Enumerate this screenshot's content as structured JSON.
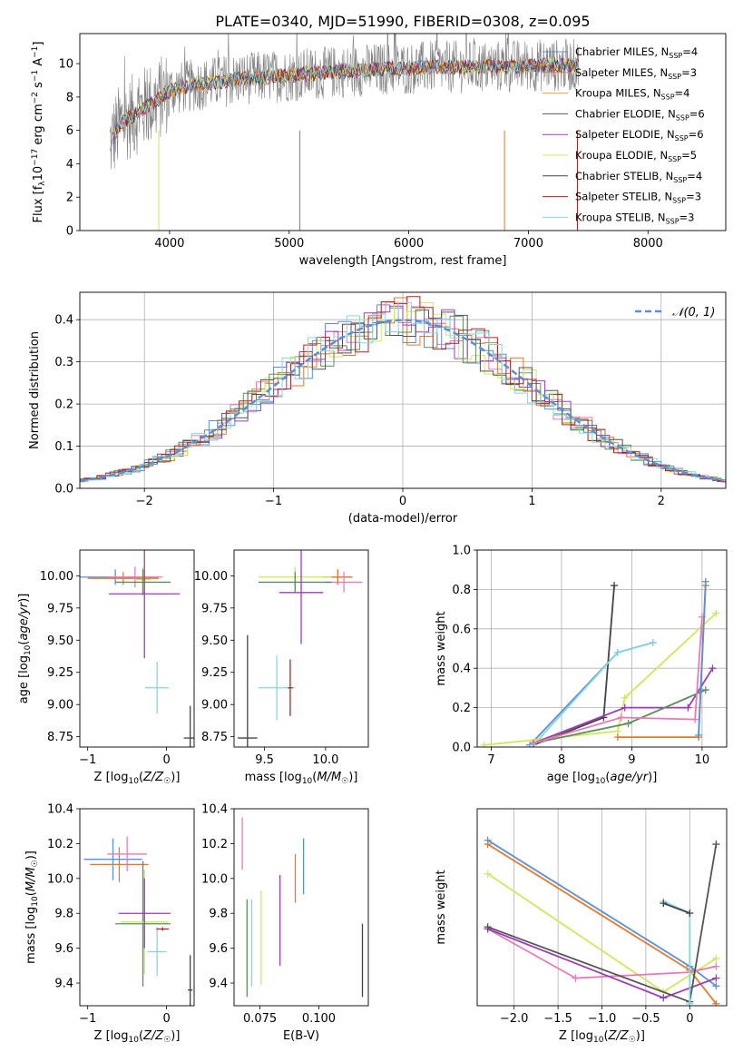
{
  "figure_title": "PLATE=0340, MJD=51990, FIBERID=0308, z=0.095",
  "colors": {
    "chabrier_miles": "#5b8fd6",
    "salpeter_miles": "#e07b2e",
    "kroupa_miles": "#e8a040",
    "chabrier_elodie": "#555555",
    "salpeter_elodie": "#9b3db8",
    "kroupa_elodie": "#cfe85a",
    "chabrier_stelib": "#444444",
    "salpeter_stelib": "#b02525",
    "kroupa_stelib": "#86d6e2",
    "pink": "#e87bb4",
    "green": "#5a8f5a",
    "spectrum_gray": "#7f7f7f"
  },
  "chart_data": [
    {
      "id": "spectrum",
      "type": "line",
      "xlabel": "wavelength [Angstrom, rest frame]",
      "ylabel": "Flux [f_λ 10^-17 erg cm^-2 s^-1 A^-1]",
      "xlim": [
        3250,
        8650
      ],
      "ylim": [
        0,
        11.8
      ],
      "xticks": [
        4000,
        5000,
        6000,
        7000,
        8000
      ],
      "yticks": [
        0,
        2,
        4,
        6,
        8,
        10
      ],
      "legend_position": "upper-right",
      "legend": [
        {
          "label": "Chabrier MILES, N_SSP=4",
          "color": "#5b8fd6"
        },
        {
          "label": "Salpeter MILES, N_SSP=3",
          "color": "#e07b2e"
        },
        {
          "label": "Kroupa MILES, N_SSP=4",
          "color": "#e8a040"
        },
        {
          "label": "Chabrier ELODIE, N_SSP=6",
          "color": "#555555"
        },
        {
          "label": "Salpeter ELODIE, N_SSP=6",
          "color": "#9b3db8"
        },
        {
          "label": "Kroupa ELODIE, N_SSP=5",
          "color": "#cfe85a"
        },
        {
          "label": "Chabrier STELIB, N_SSP=4",
          "color": "#444444"
        },
        {
          "label": "Salpeter STELIB, N_SSP=3",
          "color": "#b02525"
        },
        {
          "label": "Kroupa STELIB, N_SSP=3",
          "color": "#86d6e2"
        }
      ],
      "continuum": [
        [
          3500,
          5.2
        ],
        [
          3600,
          6.5
        ],
        [
          3700,
          6.9
        ],
        [
          3800,
          7.4
        ],
        [
          3900,
          7.8
        ],
        [
          4000,
          8.4
        ],
        [
          4200,
          8.7
        ],
        [
          4400,
          8.9
        ],
        [
          4600,
          9.1
        ],
        [
          4800,
          9.2
        ],
        [
          5000,
          9.3
        ],
        [
          5200,
          9.4
        ],
        [
          5400,
          9.5
        ],
        [
          5600,
          9.6
        ],
        [
          5800,
          9.7
        ],
        [
          6000,
          9.7
        ],
        [
          6200,
          9.8
        ],
        [
          6400,
          9.8
        ],
        [
          6600,
          9.8
        ],
        [
          6800,
          9.8
        ],
        [
          7000,
          9.9
        ],
        [
          7200,
          9.9
        ],
        [
          7400,
          9.9
        ]
      ]
    },
    {
      "id": "residuals",
      "type": "histogram",
      "xlabel": "(data-model)/error",
      "ylabel": "Normed distribution",
      "xlim": [
        -2.5,
        2.5
      ],
      "ylim": [
        0,
        0.465
      ],
      "xticks": [
        -2,
        -1,
        0,
        1,
        2
      ],
      "yticks": [
        0.0,
        0.1,
        0.2,
        0.3,
        0.4
      ],
      "grid": true,
      "legend_label": "𝒩(0, 1)",
      "legend_position": "upper-right"
    },
    {
      "id": "age_vs_Z",
      "type": "errorbar",
      "xlabel": "Z [log10(Z/Z☉)]",
      "ylabel": "age  [log10(age/yr)]",
      "xlim": [
        -1.1,
        0.35
      ],
      "ylim": [
        8.67,
        10.2
      ],
      "xticks": [
        -1,
        0
      ],
      "yticks": [
        8.75,
        9.0,
        9.25,
        9.5,
        9.75,
        10.0
      ],
      "points": [
        {
          "x": -0.65,
          "y": 9.99,
          "xerr": 0.55,
          "yerr": 0.06,
          "color": "#5b8fd6"
        },
        {
          "x": -0.55,
          "y": 9.98,
          "xerr": 0.45,
          "yerr": 0.05,
          "color": "#e07b2e"
        },
        {
          "x": -0.4,
          "y": 9.99,
          "xerr": 0.35,
          "yerr": 0.08,
          "color": "#e87bb4"
        },
        {
          "x": -0.3,
          "y": 9.97,
          "xerr": 0.1,
          "yerr": 0.1,
          "color": "#cfe85a"
        },
        {
          "x": -0.3,
          "y": 9.95,
          "xerr": 0.35,
          "yerr": 0.1,
          "color": "#5a8f5a"
        },
        {
          "x": -0.28,
          "y": 9.86,
          "xerr": 0.45,
          "yerr": 0.5,
          "color": "#9b3db8"
        },
        {
          "x": -0.12,
          "y": 9.13,
          "xerr": 0.15,
          "yerr": 0.2,
          "color": "#86d6e2"
        },
        {
          "x": 0.3,
          "y": 8.74,
          "xerr": 0.08,
          "yerr": 0.25,
          "color": "#444444"
        }
      ]
    },
    {
      "id": "age_vs_mass",
      "type": "errorbar",
      "xlabel": "mass [log10(M/M☉)]",
      "ylabel": "",
      "xlim": [
        9.25,
        10.35
      ],
      "ylim": [
        8.67,
        10.2
      ],
      "xticks": [
        9.5,
        10.0
      ],
      "yticks": [
        8.75,
        9.0,
        9.25,
        9.5,
        9.75,
        10.0
      ],
      "points": [
        {
          "x": 10.1,
          "y": 9.99,
          "xerr": 0.12,
          "yerr": 0.06,
          "color": "#5b8fd6"
        },
        {
          "x": 10.1,
          "y": 9.99,
          "xerr": 0.12,
          "yerr": 0.06,
          "color": "#e07b2e"
        },
        {
          "x": 10.15,
          "y": 9.95,
          "xerr": 0.15,
          "yerr": 0.08,
          "color": "#e87bb4"
        },
        {
          "x": 9.75,
          "y": 9.99,
          "xerr": 0.3,
          "yerr": 0.08,
          "color": "#cfe85a"
        },
        {
          "x": 9.75,
          "y": 9.95,
          "xerr": 0.3,
          "yerr": 0.08,
          "color": "#5a8f5a"
        },
        {
          "x": 9.8,
          "y": 9.87,
          "xerr": 0.18,
          "yerr": 0.4,
          "color": "#9b3db8"
        },
        {
          "x": 9.6,
          "y": 9.13,
          "xerr": 0.15,
          "yerr": 0.25,
          "color": "#86d6e2"
        },
        {
          "x": 9.71,
          "y": 9.13,
          "xerr": 0.02,
          "yerr": 0.22,
          "color": "#b02525"
        },
        {
          "x": 9.36,
          "y": 8.74,
          "xerr": 0.08,
          "yerr": 0.8,
          "color": "#444444"
        }
      ]
    },
    {
      "id": "weight_vs_age",
      "type": "line",
      "xlabel": "age  [log10(age/yr)]",
      "ylabel": "mass weight",
      "xlim": [
        6.8,
        10.35
      ],
      "ylim": [
        0,
        1.0
      ],
      "xticks": [
        7,
        8,
        9,
        10
      ],
      "yticks": [
        0.0,
        0.2,
        0.4,
        0.6,
        0.8,
        1.0
      ],
      "grid": true,
      "series": [
        {
          "color": "#444444",
          "points": [
            [
              7.6,
              0.01
            ],
            [
              8.6,
              0.15
            ],
            [
              8.75,
              0.82
            ]
          ]
        },
        {
          "color": "#5b8fd6",
          "points": [
            [
              7.55,
              0.01
            ],
            [
              8.8,
              0.48
            ],
            [
              9.3,
              0.53
            ]
          ]
        },
        {
          "color": "#86d6e2",
          "points": [
            [
              7.6,
              0.01
            ],
            [
              8.8,
              0.48
            ],
            [
              9.3,
              0.53
            ]
          ]
        },
        {
          "color": "#cfe85a",
          "points": [
            [
              6.9,
              0.01
            ],
            [
              8.8,
              0.08
            ],
            [
              8.9,
              0.25
            ],
            [
              10.2,
              0.68
            ]
          ]
        },
        {
          "color": "#9b3db8",
          "points": [
            [
              7.6,
              0.02
            ],
            [
              8.9,
              0.2
            ],
            [
              9.8,
              0.2
            ],
            [
              10.15,
              0.4
            ]
          ]
        },
        {
          "color": "#5a8f5a",
          "points": [
            [
              7.6,
              0.02
            ],
            [
              8.95,
              0.12
            ],
            [
              10.05,
              0.29
            ]
          ]
        },
        {
          "color": "#e87bb4",
          "points": [
            [
              7.6,
              0.02
            ],
            [
              8.85,
              0.15
            ],
            [
              9.9,
              0.14
            ],
            [
              10.0,
              0.66
            ]
          ]
        },
        {
          "color": "#e07b2e",
          "points": [
            [
              8.8,
              0.05
            ],
            [
              9.95,
              0.05
            ],
            [
              10.05,
              0.82
            ]
          ]
        },
        {
          "color": "#5b8fd6",
          "points": [
            [
              9.95,
              0.06
            ],
            [
              10.05,
              0.84
            ]
          ]
        }
      ]
    },
    {
      "id": "mass_vs_Z",
      "type": "errorbar",
      "xlabel": "Z [log10(Z/Z☉)]",
      "ylabel": "mass [log10(M/M☉)]",
      "xlim": [
        -1.1,
        0.35
      ],
      "ylim": [
        9.27,
        10.4
      ],
      "xticks": [
        -1,
        0
      ],
      "yticks": [
        9.4,
        9.6,
        9.8,
        10.0,
        10.2,
        10.4
      ],
      "points": [
        {
          "x": -0.68,
          "y": 10.11,
          "xerr": 0.37,
          "yerr": 0.12,
          "color": "#5b8fd6"
        },
        {
          "x": -0.6,
          "y": 10.08,
          "xerr": 0.37,
          "yerr": 0.1,
          "color": "#e07b2e"
        },
        {
          "x": -0.5,
          "y": 10.14,
          "xerr": 0.25,
          "yerr": 0.1,
          "color": "#e87bb4"
        },
        {
          "x": -0.3,
          "y": 9.74,
          "xerr": 0.35,
          "yerr": 0.36,
          "color": "#5a8f5a"
        },
        {
          "x": -0.28,
          "y": 9.75,
          "xerr": 0.3,
          "yerr": 0.3,
          "color": "#cfe85a"
        },
        {
          "x": -0.28,
          "y": 9.8,
          "xerr": 0.33,
          "yerr": 0.2,
          "color": "#9b3db8"
        },
        {
          "x": -0.12,
          "y": 9.58,
          "xerr": 0.12,
          "yerr": 0.14,
          "color": "#86d6e2"
        },
        {
          "x": -0.05,
          "y": 9.71,
          "xerr": 0.08,
          "yerr": 0.01,
          "color": "#b02525"
        },
        {
          "x": 0.3,
          "y": 9.36,
          "xerr": 0.03,
          "yerr": 0.2,
          "color": "#444444"
        }
      ]
    },
    {
      "id": "mass_vs_ebv",
      "type": "errorbar",
      "xlabel": "E(B-V)",
      "ylabel": "",
      "xlim": [
        0.064,
        0.121
      ],
      "ylim": [
        9.27,
        10.4
      ],
      "xticks": [
        0.075,
        0.1
      ],
      "xticklabels": [
        "0.075",
        "0.100"
      ],
      "yticks": [
        9.4,
        9.6,
        9.8,
        10.0,
        10.2,
        10.4
      ],
      "points": [
        {
          "x": 0.0675,
          "y": 10.2,
          "yerr": 0.15,
          "color": "#e87bb4"
        },
        {
          "x": 0.0695,
          "y": 9.6,
          "yerr": 0.28,
          "color": "#5a8f5a"
        },
        {
          "x": 0.0715,
          "y": 9.63,
          "yerr": 0.25,
          "color": "#86d6e2"
        },
        {
          "x": 0.0755,
          "y": 9.66,
          "yerr": 0.27,
          "color": "#cfe85a"
        },
        {
          "x": 0.0835,
          "y": 9.76,
          "yerr": 0.26,
          "color": "#9b3db8"
        },
        {
          "x": 0.09,
          "y": 10.0,
          "yerr": 0.14,
          "color": "#e07b2e"
        },
        {
          "x": 0.0935,
          "y": 10.07,
          "yerr": 0.16,
          "color": "#5b8fd6"
        },
        {
          "x": 0.1185,
          "y": 9.53,
          "yerr": 0.21,
          "color": "#444444"
        }
      ]
    },
    {
      "id": "weight_vs_Z",
      "type": "line",
      "xlabel": "Z [log10(Z/Z☉)]",
      "ylabel": "mass weight",
      "xlim": [
        -2.42,
        0.42
      ],
      "ylim": [
        0,
        1.0
      ],
      "xticks": [
        -2.0,
        -1.5,
        -1.0,
        -0.5,
        0.0
      ],
      "grid": true,
      "series": [
        {
          "color": "#5b8fd6",
          "points": [
            [
              -2.3,
              0.84
            ],
            [
              0.0,
              0.2
            ],
            [
              0.3,
              0.1
            ]
          ]
        },
        {
          "color": "#e07b2e",
          "points": [
            [
              -2.3,
              0.82
            ],
            [
              0.0,
              0.18
            ],
            [
              0.3,
              0.01
            ]
          ]
        },
        {
          "color": "#cfe85a",
          "points": [
            [
              -2.3,
              0.67
            ],
            [
              -0.3,
              0.07
            ],
            [
              0.3,
              0.24
            ]
          ]
        },
        {
          "color": "#e87bb4",
          "points": [
            [
              -2.3,
              0.39
            ],
            [
              -1.3,
              0.14
            ],
            [
              0.0,
              0.17
            ],
            [
              0.3,
              0.2
            ]
          ]
        },
        {
          "color": "#9b3db8",
          "points": [
            [
              -2.3,
              0.39
            ],
            [
              -0.3,
              0.04
            ],
            [
              0.3,
              0.14
            ]
          ]
        },
        {
          "color": "#555555",
          "points": [
            [
              -2.3,
              0.4
            ],
            [
              0.0,
              0.02
            ],
            [
              0.3,
              0.82
            ]
          ]
        },
        {
          "color": "#86d6e2",
          "points": [
            [
              -0.3,
              0.53
            ],
            [
              0.0,
              0.47
            ],
            [
              0.0,
              0.01
            ]
          ]
        },
        {
          "color": "#444444",
          "points": [
            [
              -0.3,
              0.52
            ],
            [
              0.0,
              0.47
            ]
          ]
        }
      ]
    }
  ]
}
